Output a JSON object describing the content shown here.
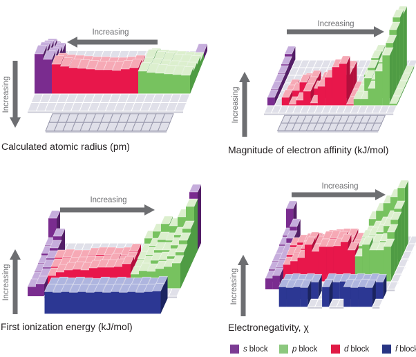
{
  "figure": {
    "titles": {
      "atomic_radius": "Calculated atomic radius (pm)",
      "electron_affinity": "Magnitude of electron affinity (kJ/mol)",
      "ionization_energy": "First ionization energy (kJ/mol)",
      "electronegativity": "Electronegativity, χ"
    }
  },
  "colors": {
    "blocks": {
      "s": {
        "front": "#7A2C8F",
        "top": "#C6ADDC",
        "side": "#531E66"
      },
      "p": {
        "front": "#77C25F",
        "top": "#DCEFCE",
        "side": "#4F9C44"
      },
      "d": {
        "front": "#E8174B",
        "top": "#F6A9B5",
        "side": "#B20F3C"
      },
      "f": {
        "front": "#2C3793",
        "top": "#AEB5DF",
        "side": "#1B2460"
      }
    },
    "tile": {
      "fill": "#E0E0E9",
      "stroke": "#FFFFFF",
      "front": "#C9C9D5",
      "outline": "#9898AC"
    },
    "arrow": "#6D6E71",
    "title_text": "#231F20"
  },
  "chart_data": [
    {
      "type": "3d-bar-periodic",
      "id": "atomic-radius",
      "title": "Calculated atomic radius (pm)",
      "h_arrow": {
        "label": "Increasing",
        "direction": "left"
      },
      "v_arrow": {
        "label": "Increasing",
        "direction": "down"
      },
      "f_style": "outlined",
      "rows": [
        [
          14,
          0,
          0,
          0,
          0,
          0,
          0,
          0,
          0,
          0,
          0,
          0,
          0,
          0,
          0,
          0,
          0,
          10
        ],
        [
          30,
          24,
          0,
          0,
          0,
          0,
          0,
          0,
          0,
          0,
          0,
          0,
          16,
          14,
          13,
          12,
          11,
          10
        ],
        [
          40,
          32,
          0,
          0,
          0,
          0,
          0,
          0,
          0,
          0,
          0,
          0,
          27,
          24,
          22,
          20,
          19,
          18
        ],
        [
          50,
          42,
          34,
          32,
          31,
          30,
          29,
          29,
          28,
          28,
          29,
          31,
          28,
          26,
          24,
          23,
          22,
          21
        ],
        [
          58,
          50,
          43,
          40,
          38,
          37,
          36,
          35,
          35,
          34,
          36,
          38,
          33,
          31,
          30,
          29,
          28,
          27
        ],
        [
          0,
          0,
          0,
          0,
          0,
          0,
          0,
          0,
          0,
          0,
          0,
          0,
          0,
          0,
          0,
          0,
          0,
          0
        ],
        [
          0,
          0,
          0,
          0,
          0,
          0,
          0,
          0,
          0,
          0,
          0,
          0,
          0,
          0,
          0,
          0,
          0,
          0
        ]
      ],
      "f_rows": [
        [
          0,
          0,
          0,
          0,
          0,
          0,
          0,
          0,
          0,
          0,
          0,
          0,
          0,
          0
        ],
        [
          0,
          0,
          0,
          0,
          0,
          0,
          0,
          0,
          0,
          0,
          0,
          0,
          0,
          0
        ]
      ]
    },
    {
      "type": "3d-bar-periodic",
      "id": "electron-affinity",
      "title": "Magnitude of electron affinity (kJ/mol)",
      "h_arrow": {
        "label": "Increasing",
        "direction": "right"
      },
      "v_arrow": {
        "label": "Increasing",
        "direction": "up"
      },
      "f_style": "outlined",
      "rows": [
        [
          20,
          0,
          0,
          0,
          0,
          0,
          0,
          0,
          0,
          0,
          0,
          0,
          0,
          0,
          0,
          0,
          0,
          0
        ],
        [
          16,
          0,
          0,
          0,
          0,
          0,
          0,
          0,
          0,
          0,
          0,
          0,
          7,
          33,
          2,
          38,
          89,
          3
        ],
        [
          14,
          0,
          0,
          0,
          0,
          0,
          0,
          0,
          0,
          0,
          0,
          0,
          12,
          36,
          20,
          54,
          95,
          3
        ],
        [
          13,
          0,
          5,
          2,
          14,
          18,
          2,
          4,
          17,
          30,
          32,
          2,
          8,
          33,
          21,
          53,
          88,
          3
        ],
        [
          13,
          0,
          8,
          11,
          23,
          20,
          14,
          27,
          30,
          15,
          34,
          2,
          8,
          29,
          27,
          52,
          80,
          3
        ],
        [
          12,
          0,
          12,
          2,
          8,
          21,
          4,
          28,
          41,
          56,
          61,
          2,
          10,
          10,
          25,
          50,
          73,
          3
        ],
        [
          0,
          0,
          0,
          0,
          0,
          0,
          0,
          0,
          0,
          0,
          0,
          0,
          0,
          0,
          0,
          0,
          0,
          0
        ]
      ],
      "f_rows": [
        [
          0,
          0,
          0,
          0,
          0,
          0,
          0,
          0,
          0,
          0,
          0,
          0,
          0,
          0
        ],
        [
          0,
          0,
          0,
          0,
          0,
          0,
          0,
          0,
          0,
          0,
          0,
          0,
          0,
          0
        ]
      ]
    },
    {
      "type": "3d-bar-periodic",
      "id": "ionization-energy",
      "title": "First ionization energy (kJ/mol)",
      "h_arrow": {
        "label": "Increasing",
        "direction": "right"
      },
      "v_arrow": {
        "label": "Increasing",
        "direction": "up"
      },
      "f_style": "bars",
      "rows": [
        [
          47,
          0,
          0,
          0,
          0,
          0,
          0,
          0,
          0,
          0,
          0,
          0,
          0,
          0,
          0,
          0,
          0,
          85
        ],
        [
          19,
          32,
          0,
          0,
          0,
          0,
          0,
          0,
          0,
          0,
          0,
          0,
          29,
          39,
          50,
          47,
          60,
          75
        ],
        [
          18,
          26,
          0,
          0,
          0,
          0,
          0,
          0,
          0,
          0,
          0,
          0,
          21,
          29,
          38,
          37,
          45,
          54
        ],
        [
          15,
          22,
          23,
          24,
          23,
          23,
          26,
          27,
          27,
          26,
          27,
          32,
          21,
          27,
          34,
          34,
          41,
          48
        ],
        [
          14,
          20,
          21,
          23,
          23,
          24,
          25,
          25,
          26,
          29,
          26,
          31,
          20,
          25,
          30,
          31,
          36,
          42
        ],
        [
          13,
          18,
          19,
          24,
          27,
          28,
          27,
          30,
          31,
          31,
          32,
          36,
          21,
          26,
          25,
          29,
          32,
          37
        ],
        [
          14,
          18,
          0,
          0,
          0,
          0,
          0,
          0,
          0,
          0,
          0,
          0,
          0,
          0,
          0,
          0,
          0,
          0
        ]
      ],
      "f_rows": [
        [
          30,
          31,
          30,
          31,
          30,
          29,
          31,
          30,
          31,
          30,
          30,
          31,
          30,
          32
        ],
        [
          32,
          31,
          32,
          31,
          32,
          31,
          32,
          31,
          32,
          31,
          32,
          31,
          32,
          33
        ]
      ]
    },
    {
      "type": "3d-bar-periodic",
      "id": "electronegativity",
      "title": "Electronegativity, χ",
      "h_arrow": {
        "label": "Increasing",
        "direction": "right"
      },
      "v_arrow": {
        "label": "Increasing",
        "direction": "up"
      },
      "f_style": "bars",
      "rows": [
        [
          51,
          0,
          0,
          0,
          0,
          0,
          0,
          0,
          0,
          0,
          0,
          0,
          0,
          0,
          0,
          0,
          0,
          0
        ],
        [
          23,
          36,
          0,
          0,
          0,
          0,
          0,
          0,
          0,
          0,
          0,
          0,
          47,
          59,
          70,
          79,
          92,
          0
        ],
        [
          21,
          30,
          0,
          0,
          0,
          0,
          0,
          0,
          0,
          0,
          0,
          0,
          37,
          44,
          50,
          59,
          73,
          0
        ],
        [
          19,
          23,
          31,
          35,
          37,
          38,
          36,
          42,
          43,
          44,
          44,
          38,
          42,
          46,
          50,
          59,
          68,
          0
        ],
        [
          19,
          22,
          28,
          31,
          37,
          50,
          44,
          51,
          52,
          51,
          44,
          39,
          41,
          45,
          47,
          48,
          61,
          0
        ],
        [
          18,
          21,
          25,
          30,
          35,
          54,
          44,
          51,
          51,
          52,
          58,
          46,
          37,
          54,
          46,
          46,
          51,
          0
        ],
        [
          16,
          20,
          0,
          0,
          0,
          0,
          0,
          0,
          0,
          0,
          0,
          0,
          0,
          0,
          0,
          0,
          0,
          0
        ]
      ],
      "f_rows": [
        [
          25,
          26,
          25,
          26,
          25,
          0,
          26,
          25,
          26,
          25,
          26,
          25,
          26,
          25
        ],
        [
          29,
          28,
          29,
          28,
          0,
          0,
          29,
          0,
          0,
          29,
          28,
          29,
          28,
          0
        ]
      ]
    }
  ],
  "legend": {
    "items": [
      {
        "symbol": "s",
        "word": "block",
        "color": "#7B3B93"
      },
      {
        "symbol": "p",
        "word": "block",
        "color": "#8CC87E"
      },
      {
        "symbol": "d",
        "word": "block",
        "color": "#E01A45"
      },
      {
        "symbol": "f",
        "word": "block",
        "color": "#283583"
      }
    ]
  }
}
